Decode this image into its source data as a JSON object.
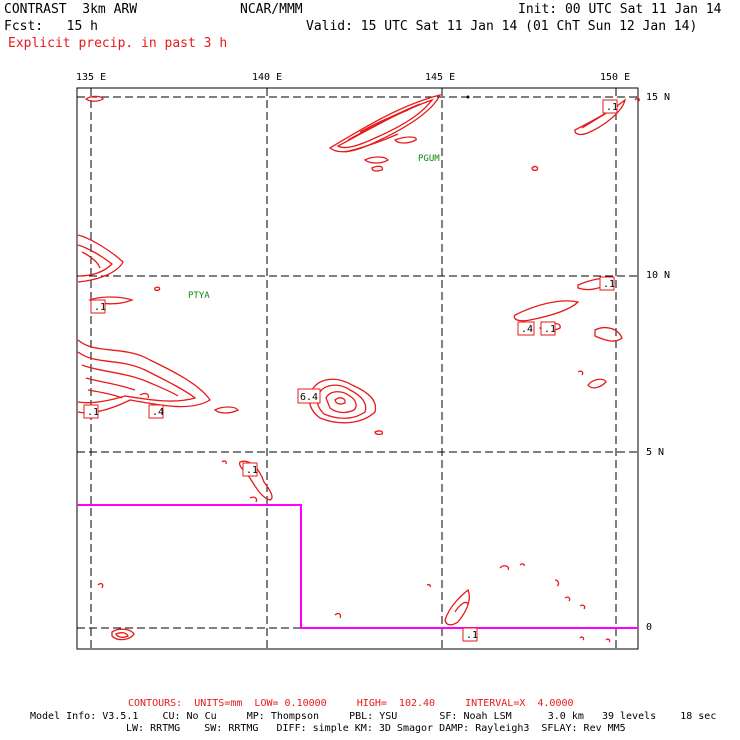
{
  "header": {
    "model": "CONTRAST  3km ARW",
    "org": "NCAR/MMM",
    "init": "Init: 00 UTC Sat 11 Jan 14",
    "fcst": "Fcst:   15 h",
    "valid": "Valid: 15 UTC Sat 11 Jan 14 (01 ChT Sun 12 Jan 14)",
    "field": "Explicit precip. in past 3 h"
  },
  "axes": {
    "lon_labels": [
      "135 E",
      "140 E",
      "145 E",
      "150 E"
    ],
    "lat_labels": [
      "15 N",
      "10 N",
      "5 N",
      "0"
    ]
  },
  "stations": [
    "PGUM",
    "PTYA"
  ],
  "contour_labels": [
    ".1",
    ".1",
    ".4",
    ".1",
    ".1",
    ".4",
    ".1",
    "6.4",
    ".1",
    ".1"
  ],
  "footer": {
    "contours": "CONTOURS:  UNITS=mm  LOW= 0.10000     HIGH=  102.40     INTERVAL=X  4.0000",
    "model_info_1": "Model Info: V3.5.1    CU: No Cu     MP: Thompson     PBL: YSU       SF: Noah LSM      3.0 km   39 levels    18 sec",
    "model_info_2": "LW: RRTMG    SW: RRTMG   DIFF: simple KM: 3D Smagor DAMP: Rayleigh3  SFLAY: Rev MM5"
  },
  "colors": {
    "contour": "#e8191a",
    "boundary": "#ff00ff",
    "station": "#0a8a0a"
  }
}
